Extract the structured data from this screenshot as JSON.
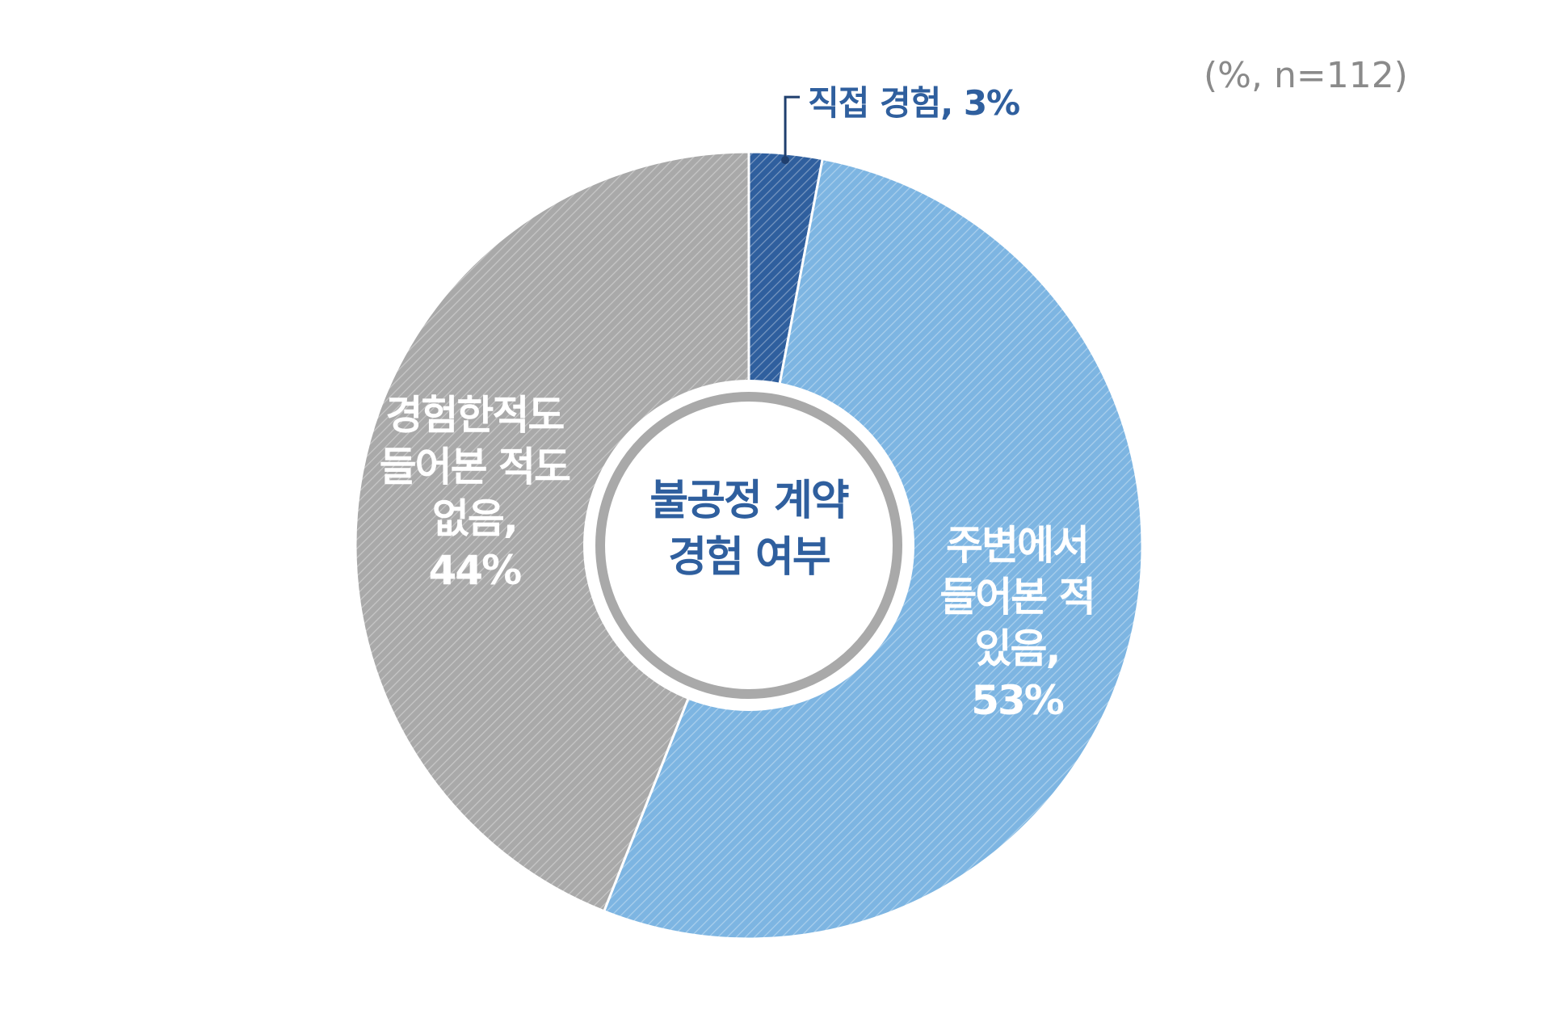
{
  "chart_data": {
    "type": "pie",
    "note": "(%, n=112)",
    "center_label": "불공정 계약 경험 여부",
    "categories": [
      "직접 경험",
      "주변에서 들어본 적 있음",
      "경험한적도 들어본 적도 없음"
    ],
    "values": [
      3,
      53,
      44
    ],
    "value_labels": [
      "3%",
      "53%",
      "44%"
    ],
    "colors": [
      "#2f5f9e",
      "#7db5e2",
      "#a9a9a9"
    ]
  }
}
